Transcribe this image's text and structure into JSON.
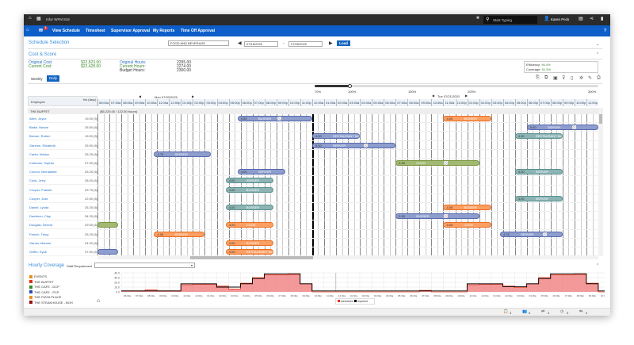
{
  "topbar": {
    "app_title": "Infor WFM 818",
    "search_placeholder": "Start Typing",
    "user": "Karen Peck"
  },
  "nav": {
    "badge": "1",
    "items": [
      "View Schedule",
      "Timesheet",
      "Supervisor Approval",
      "My Reports",
      "Time Off Approval"
    ],
    "help": "?"
  },
  "schedule_selection": {
    "title": "Schedule Selection",
    "org": "FOOD AND BEVERAGE",
    "start_date": "07/18/2020",
    "end_date": "07/25/2020",
    "date_sep": "-",
    "load_label": "Load"
  },
  "cost_score": {
    "title": "Cost & Score",
    "original_cost_label": "Original Cost:",
    "original_cost": "$22,823.00",
    "current_cost_label": "Current Cost:",
    "current_cost": "$22,428.00",
    "original_hours_label": "Original Hours:",
    "original_hours": "2295.00",
    "current_hours_label": "Current Hours:",
    "current_hours": "2274.00",
    "budget_hours_label": "Budget Hours:",
    "budget_hours": "2300.00",
    "efficiency_label": "Efficiency:",
    "efficiency": "96.4%",
    "coverage_label": "Coverage:",
    "coverage": "91.3%"
  },
  "view_tabs": [
    {
      "label": "Weekly",
      "active": false
    },
    {
      "label": "Daily",
      "active": true
    }
  ],
  "toolbar_icons": [
    "copy-icon",
    "paste-icon",
    "calendar-icon",
    "filter-icon",
    "page-icon",
    "gear-icon",
    "edit-icon",
    "print-icon"
  ],
  "zoom": {
    "labels": [
      "70%",
      "100%",
      "150%",
      "200%",
      "300%"
    ],
    "value": "100%"
  },
  "grid": {
    "employee_header": "Employee",
    "hours_header": "Hrs (days)",
    "days": [
      {
        "label": "Mon 07/20/2020",
        "hours": [
          "06:00a",
          "07:00a",
          "08:00a",
          "09:00a",
          "10:00a",
          "11:00a",
          "12:00p",
          "01:00p",
          "02:00p",
          "03:00p",
          "04:00p",
          "05:00p",
          "06:00p",
          "07:00p",
          "08:00p",
          "09:00p",
          "10:00p",
          "11:00p"
        ]
      },
      {
        "label": "Tue 07/21/2020",
        "hours": [
          "12:00a",
          "01:00a",
          "02:00a",
          "03:00a",
          "04:00a",
          "05:00a",
          "06:00a",
          "07:00a",
          "08:00a",
          "09:00a",
          "10:00a",
          "11:00a",
          "12:00p",
          "01:00p",
          "02:00p",
          "03:00p",
          "04:00p",
          "05:00p",
          "06:00p",
          "07:00p",
          "08:00p",
          "09:00p",
          "10:00p",
          "11:00p"
        ]
      }
    ],
    "group": {
      "name": "THE BUFFET",
      "summary": "($5,225.00 / 122.50 hours)"
    },
    "colors": {
      "blue": "#8e9dc9",
      "teal": "#8fb3b3",
      "green": "#a3b878",
      "orange": "#f4a06a"
    },
    "employees": [
      {
        "name": "Allen, Joyce",
        "hrs": "19.00 (5)",
        "shifts": [
          {
            "day": 0,
            "start": "17:45",
            "end": "24:00",
            "hrs": "5.50",
            "job": "BUSSER",
            "color": "blue",
            "break": "21:00"
          },
          {
            "day": 1,
            "start": "11:00",
            "end": "15:00",
            "hrs": "4.00",
            "job": "BUSSER",
            "color": "orange"
          }
        ]
      },
      {
        "name": "Blake, Marcie",
        "hrs": "25.50 (6)",
        "shifts": [
          {
            "day": 1,
            "start": "18:00",
            "end": "24:00",
            "hrs": "5.50",
            "job": "SERVER",
            "color": "blue",
            "break": "21:45"
          }
        ]
      },
      {
        "name": "Brewer, Ruben",
        "hrs": "19.00 (5)",
        "shifts": [
          {
            "day": 1,
            "start": "00:00",
            "end": "04:00",
            "hrs": "4.00",
            "job": "RESTAURANT MA",
            "color": "blue"
          },
          {
            "day": 1,
            "start": "17:00",
            "end": "21:00",
            "hrs": "4.00",
            "job": "RESTAURANT MA",
            "color": "teal"
          }
        ]
      },
      {
        "name": "Gannon, Elizabeth",
        "hrs": "25.50 (6)",
        "shifts": [
          {
            "day": 1,
            "start": "00:00",
            "end": "07:00",
            "hrs": "5.50",
            "job": "SERVER",
            "color": "blue",
            "break": "04:15"
          }
        ]
      },
      {
        "name": "Carter, Marlon",
        "hrs": "25.25 (6)",
        "shifts": [
          {
            "day": 0,
            "start": "10:45",
            "end": "15:30",
            "hrs": "4.75",
            "job": "SERVER",
            "color": "blue"
          }
        ]
      },
      {
        "name": "Coleman, Sophia",
        "hrs": "37.50 (6)",
        "shifts": [
          {
            "day": 1,
            "start": "07:00",
            "end": "14:00",
            "hrs": "5.50",
            "job": "COOK",
            "color": "green",
            "break": "11:00"
          }
        ]
      },
      {
        "name": "Connor, Bernadette",
        "hrs": "25.25 (6)",
        "shifts": [
          {
            "day": 0,
            "start": "17:45",
            "end": "21:45",
            "hrs": "4.00",
            "job": "SERVER",
            "color": "blue"
          },
          {
            "day": 1,
            "start": "17:00",
            "end": "21:00",
            "hrs": "4.00",
            "job": "SERVER",
            "color": "teal"
          }
        ]
      },
      {
        "name": "Cook, Jerry",
        "hrs": "28.00 (6)",
        "shifts": [
          {
            "day": 0,
            "start": "16:45",
            "end": "20:45",
            "hrs": "4.00",
            "job": "SERVER",
            "color": "teal"
          }
        ]
      },
      {
        "name": "Cooper, Frankie",
        "hrs": "23.75 (6)",
        "shifts": [
          {
            "day": 0,
            "start": "16:45",
            "end": "20:45",
            "hrs": "4.00",
            "job": "BUSSER",
            "color": "teal"
          }
        ]
      },
      {
        "name": "Cooper, Jose",
        "hrs": "22.50 (6)",
        "shifts": [
          {
            "day": 1,
            "start": "17:00",
            "end": "21:00",
            "hrs": "4.00",
            "job": "SERVER",
            "color": "teal"
          }
        ]
      },
      {
        "name": "Daniel, Lynda",
        "hrs": "25.25 (6)",
        "shifts": [
          {
            "day": 0,
            "start": "16:45",
            "end": "20:45",
            "hrs": "4.00",
            "job": "BUSSER",
            "color": "teal"
          },
          {
            "day": 1,
            "start": "11:00",
            "end": "15:00",
            "hrs": "4.00",
            "job": "BUSSER",
            "color": "orange"
          }
        ]
      },
      {
        "name": "Davidson, Clay",
        "hrs": "34.25 (6)",
        "shifts": [
          {
            "day": 1,
            "start": "07:00",
            "end": "14:00",
            "hrs": "5.50",
            "job": "BUSSER",
            "color": "blue",
            "break": "11:00"
          }
        ]
      },
      {
        "name": "Douglas, Dennis",
        "hrs": "29.50 (6)",
        "shifts": [
          {
            "day": 0,
            "start": "06:00",
            "end": "07:45",
            "hrs": "",
            "job": "",
            "color": "green"
          },
          {
            "day": 0,
            "start": "16:45",
            "end": "20:45",
            "hrs": "4.00",
            "job": "COOK",
            "color": "orange"
          },
          {
            "day": 1,
            "start": "11:00",
            "end": "15:00",
            "hrs": "4.00",
            "job": "COOK",
            "color": "orange"
          }
        ]
      },
      {
        "name": "French, Tracy",
        "hrs": "25.25 (6)",
        "shifts": [
          {
            "day": 0,
            "start": "10:45",
            "end": "15:00",
            "hrs": "4.00",
            "job": "SERVER",
            "color": "orange"
          },
          {
            "day": 1,
            "start": "15:45",
            "end": "21:00",
            "hrs": "4.75",
            "job": "SERVER",
            "color": "blue",
            "break": "19:15"
          }
        ]
      },
      {
        "name": "Garcia, Manuel",
        "hrs": "24.00 (6)",
        "shifts": [
          {
            "day": 0,
            "start": "16:45",
            "end": "20:45",
            "hrs": "4.00",
            "job": "BUSSER",
            "color": "orange"
          }
        ]
      },
      {
        "name": "Griffin, Kyall",
        "hrs": "37.50 (6)",
        "shifts": [
          {
            "day": 0,
            "start": "06:00",
            "end": "07:45",
            "hrs": "",
            "job": "RESTAURANT MA",
            "color": "blue"
          },
          {
            "day": 0,
            "start": "16:45",
            "end": "20:45",
            "hrs": "4.00",
            "job": "RESTAURANT MA",
            "color": "orange"
          }
        ]
      }
    ]
  },
  "coverage": {
    "title": "Hourly Coverage",
    "requirement_label": "Staff Requirement",
    "requirement_value": "",
    "legend": [
      {
        "name": "EVENTS",
        "color": "#e8901e"
      },
      {
        "name": "THE BUFFET",
        "color": "#e53010"
      },
      {
        "name": "THE CAFE - DCP",
        "color": "#3a8a2a"
      },
      {
        "name": "THE CAFE - PCP",
        "color": "#2a4fb0"
      },
      {
        "name": "THE PIZZA PLACE",
        "color": "#e8901e"
      },
      {
        "name": "THE STEAKHOUSE - BOH",
        "color": "#9a1010"
      }
    ]
  },
  "chart_data": {
    "type": "area",
    "ylim": [
      0,
      40
    ],
    "yticks": [
      "0.0",
      "10.0",
      "20.0",
      "30.0",
      "40.0"
    ],
    "x": [
      "06:00a",
      "07:00a",
      "08:00a",
      "09:00a",
      "10:00a",
      "11:00a",
      "12:00p",
      "01:00p",
      "02:00p",
      "03:00p",
      "04:00p",
      "05:00p",
      "06:00p",
      "07:00p",
      "08:00p",
      "09:00p",
      "10:00p",
      "11:00p",
      "12:00a",
      "01:00a",
      "02:00a",
      "03:00a",
      "04:00a",
      "05:00a",
      "06:00a",
      "07:00a",
      "08:00a",
      "09:00a",
      "10:00a",
      "11:00a",
      "12:00p",
      "01:00p",
      "02:00p",
      "03:00p",
      "04:00p",
      "05:00p",
      "06:00p",
      "07:00p",
      "08:00p",
      "09:00p",
      "10:00p",
      "11:00p"
    ],
    "series": [
      {
        "name": "scheduled",
        "color": "#f08080",
        "values": [
          2,
          2,
          4,
          2,
          2,
          15,
          16,
          16,
          12,
          6,
          18,
          30,
          36,
          36,
          37,
          17,
          0,
          0,
          0,
          0,
          0,
          0,
          0,
          0,
          0,
          3,
          0,
          0,
          0,
          15,
          16,
          16,
          12,
          9,
          17,
          30,
          36,
          36,
          37,
          18,
          0,
          0
        ]
      },
      {
        "name": "required",
        "color": "#000000",
        "values": [
          2,
          2,
          2,
          2,
          2,
          17,
          17,
          17,
          10,
          10,
          17,
          28,
          38,
          38,
          38,
          17,
          2,
          2,
          2,
          2,
          2,
          2,
          2,
          2,
          2,
          2,
          2,
          2,
          2,
          17,
          17,
          17,
          11,
          11,
          17,
          28,
          38,
          38,
          38,
          17,
          2,
          2
        ]
      }
    ],
    "legend": [
      "scheduled",
      "required"
    ],
    "legend_position": "bottom"
  },
  "status_bar": [
    {
      "icon": "clipboard-icon",
      "count": "3"
    },
    {
      "icon": "users-icon",
      "count": "5"
    },
    {
      "icon": "swap-icon",
      "count": "3"
    },
    {
      "icon": "clock-icon",
      "count": "0"
    },
    {
      "icon": "person-swap-icon",
      "count": "0"
    }
  ]
}
